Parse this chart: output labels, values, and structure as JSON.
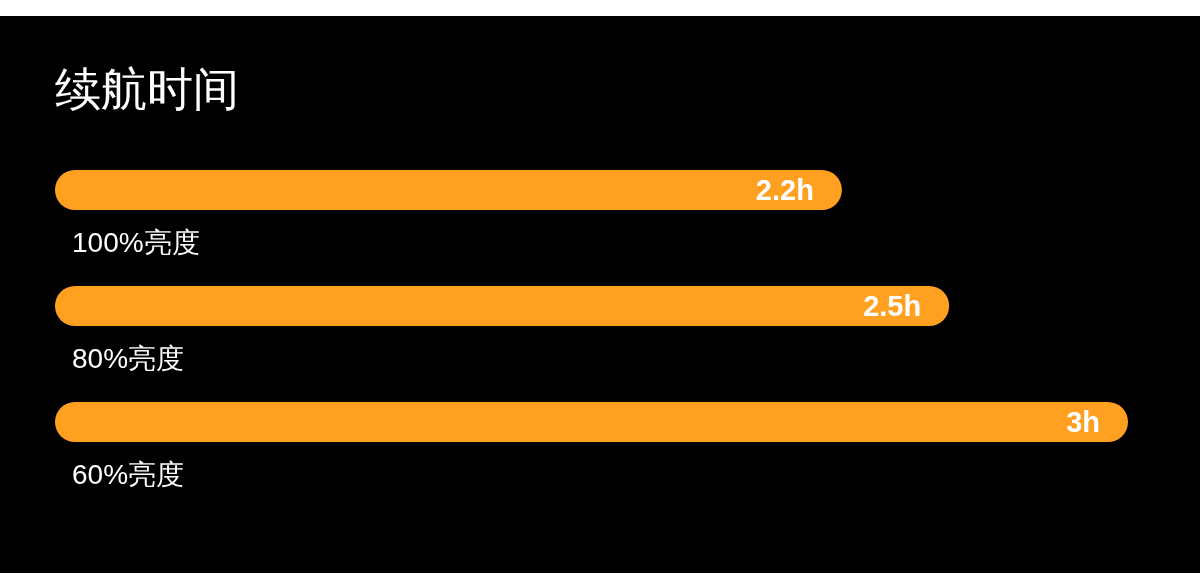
{
  "chart_data": {
    "type": "bar",
    "orientation": "horizontal",
    "title": "续航时间",
    "categories": [
      "100%亮度",
      "80%亮度",
      "60%亮度"
    ],
    "values": [
      2.2,
      2.5,
      3
    ],
    "value_labels": [
      "2.2h",
      "2.5h",
      "3h"
    ],
    "color": "#ffa020",
    "grid": false
  }
}
